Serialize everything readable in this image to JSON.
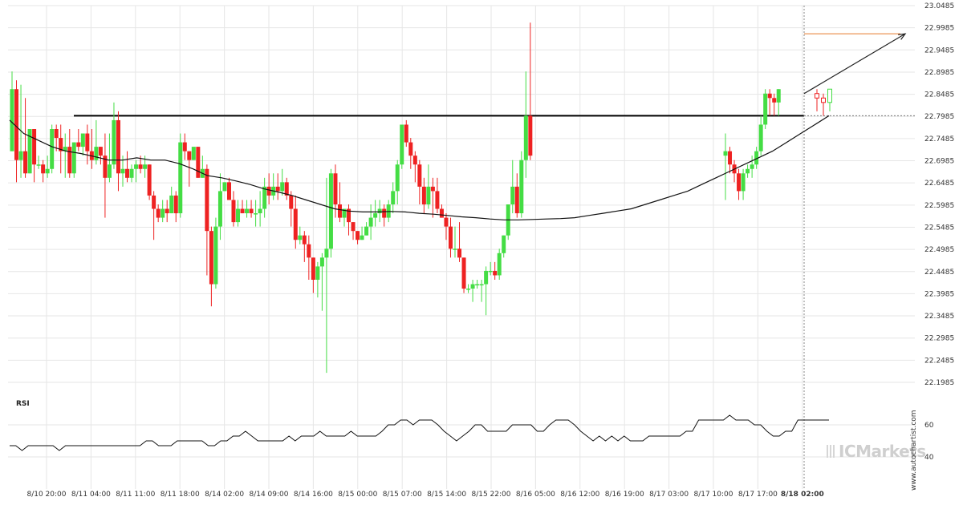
{
  "chart_data": {
    "type": "candlestick",
    "price_axis": {
      "ticks": [
        "23.0485",
        "22.9985",
        "22.9485",
        "22.8985",
        "22.8485",
        "22.7985",
        "22.7485",
        "22.6985",
        "22.6485",
        "22.5985",
        "22.5485",
        "22.4985",
        "22.4485",
        "22.3985",
        "22.3485",
        "22.2985",
        "22.2485",
        "22.1985"
      ],
      "range": [
        22.1985,
        23.0485
      ]
    },
    "time_axis": {
      "labels": [
        "8/10 20:00",
        "8/11 04:00",
        "8/11 11:00",
        "8/11 18:00",
        "8/14 02:00",
        "8/14 09:00",
        "8/14 16:00",
        "8/15 00:00",
        "8/15 07:00",
        "8/15 14:00",
        "8/15 22:00",
        "8/16 05:00",
        "8/16 12:00",
        "8/16 19:00",
        "8/17 03:00",
        "8/17 10:00",
        "8/17 17:00",
        "8/18 02:00"
      ],
      "highlight_label": "8/18 02:00"
    },
    "candle_count": 118,
    "candles_ohlc": [
      [
        22.72,
        22.9,
        22.86,
        22.72
      ],
      [
        22.86,
        22.88,
        22.7,
        22.65
      ],
      [
        22.7,
        22.87,
        22.72,
        22.66
      ],
      [
        22.72,
        22.84,
        22.67,
        22.66
      ],
      [
        22.67,
        22.75,
        22.77,
        22.67
      ],
      [
        22.77,
        22.77,
        22.69,
        22.65
      ],
      [
        22.69,
        22.71,
        22.69,
        22.68
      ],
      [
        22.69,
        22.7,
        22.67,
        22.65
      ],
      [
        22.67,
        22.71,
        22.68,
        22.66
      ],
      [
        22.68,
        22.78,
        22.77,
        22.67
      ],
      [
        22.77,
        22.78,
        22.75,
        22.72
      ],
      [
        22.75,
        22.78,
        22.72,
        22.67
      ],
      [
        22.72,
        22.76,
        22.73,
        22.66
      ],
      [
        22.73,
        22.77,
        22.67,
        22.66
      ],
      [
        22.67,
        22.74,
        22.74,
        22.66
      ],
      [
        22.74,
        22.77,
        22.73,
        22.72
      ],
      [
        22.73,
        22.76,
        22.76,
        22.71
      ],
      [
        22.76,
        22.78,
        22.72,
        22.69
      ],
      [
        22.72,
        22.77,
        22.7,
        22.68
      ],
      [
        22.7,
        22.79,
        22.73,
        22.69
      ],
      [
        22.73,
        22.73,
        22.71,
        22.69
      ],
      [
        22.71,
        22.76,
        22.66,
        22.57
      ],
      [
        22.66,
        22.76,
        22.69,
        22.65
      ],
      [
        22.69,
        22.83,
        22.79,
        22.68
      ],
      [
        22.79,
        22.81,
        22.67,
        22.63
      ],
      [
        22.67,
        22.71,
        22.68,
        22.64
      ],
      [
        22.68,
        22.72,
        22.66,
        22.65
      ],
      [
        22.66,
        22.69,
        22.68,
        22.65
      ],
      [
        22.68,
        22.7,
        22.69,
        22.65
      ],
      [
        22.69,
        22.71,
        22.68,
        22.67
      ],
      [
        22.68,
        22.71,
        22.69,
        22.66
      ],
      [
        22.69,
        22.69,
        22.62,
        22.61
      ],
      [
        22.62,
        22.63,
        22.59,
        22.52
      ],
      [
        22.59,
        22.6,
        22.57,
        22.56
      ],
      [
        22.57,
        22.61,
        22.59,
        22.56
      ],
      [
        22.59,
        22.61,
        22.58,
        22.56
      ],
      [
        22.58,
        22.64,
        22.62,
        22.58
      ],
      [
        22.62,
        22.63,
        22.58,
        22.56
      ],
      [
        22.58,
        22.76,
        22.74,
        22.57
      ],
      [
        22.74,
        22.76,
        22.72,
        22.7
      ],
      [
        22.72,
        22.72,
        22.7,
        22.64
      ],
      [
        22.7,
        22.71,
        22.73,
        22.7
      ],
      [
        22.73,
        22.73,
        22.66,
        22.66
      ],
      [
        22.66,
        22.71,
        22.68,
        22.66
      ],
      [
        22.68,
        22.69,
        22.54,
        22.44
      ],
      [
        22.54,
        22.55,
        22.42,
        22.37
      ],
      [
        22.42,
        22.57,
        22.55,
        22.41
      ],
      [
        22.55,
        22.67,
        22.63,
        22.52
      ],
      [
        22.63,
        22.65,
        22.65,
        22.63
      ],
      [
        22.65,
        22.66,
        22.61,
        22.61
      ],
      [
        22.61,
        22.63,
        22.56,
        22.55
      ],
      [
        22.56,
        22.61,
        22.59,
        22.55
      ],
      [
        22.59,
        22.61,
        22.58,
        22.58
      ],
      [
        22.58,
        22.61,
        22.59,
        22.57
      ],
      [
        22.59,
        22.61,
        22.58,
        22.57
      ],
      [
        22.58,
        22.61,
        22.58,
        22.55
      ],
      [
        22.58,
        22.63,
        22.59,
        22.55
      ],
      [
        22.59,
        22.66,
        22.64,
        22.57
      ],
      [
        22.64,
        22.67,
        22.62,
        22.6
      ],
      [
        22.62,
        22.67,
        22.64,
        22.61
      ],
      [
        22.64,
        22.67,
        22.63,
        22.61
      ],
      [
        22.63,
        22.68,
        22.65,
        22.62
      ],
      [
        22.65,
        22.66,
        22.62,
        22.61
      ],
      [
        22.62,
        22.63,
        22.59,
        22.55
      ],
      [
        22.59,
        22.62,
        22.52,
        22.5
      ],
      [
        22.52,
        22.55,
        22.53,
        22.51
      ],
      [
        22.53,
        22.54,
        22.51,
        22.47
      ],
      [
        22.51,
        22.53,
        22.48,
        22.43
      ],
      [
        22.48,
        22.48,
        22.43,
        22.4
      ],
      [
        22.43,
        22.47,
        22.46,
        22.39
      ],
      [
        22.46,
        22.49,
        22.48,
        22.36
      ],
      [
        22.48,
        22.66,
        22.5,
        22.22
      ],
      [
        22.5,
        22.68,
        22.67,
        22.48
      ],
      [
        22.67,
        22.69,
        22.6,
        22.57
      ],
      [
        22.6,
        22.65,
        22.57,
        22.56
      ],
      [
        22.57,
        22.59,
        22.59,
        22.55
      ],
      [
        22.59,
        22.6,
        22.56,
        22.53
      ],
      [
        22.56,
        22.56,
        22.54,
        22.52
      ],
      [
        22.54,
        22.54,
        22.52,
        22.51
      ],
      [
        22.52,
        22.55,
        22.53,
        22.52
      ],
      [
        22.53,
        22.56,
        22.55,
        22.53
      ],
      [
        22.55,
        22.6,
        22.57,
        22.52
      ],
      [
        22.57,
        22.61,
        22.58,
        22.55
      ],
      [
        22.58,
        22.61,
        22.59,
        22.56
      ],
      [
        22.59,
        22.6,
        22.57,
        22.55
      ],
      [
        22.57,
        22.61,
        22.6,
        22.56
      ],
      [
        22.6,
        22.65,
        22.63,
        22.58
      ],
      [
        22.63,
        22.7,
        22.69,
        22.6
      ],
      [
        22.69,
        22.76,
        22.78,
        22.68
      ],
      [
        22.78,
        22.79,
        22.74,
        22.73
      ],
      [
        22.74,
        22.75,
        22.71,
        22.68
      ],
      [
        22.71,
        22.72,
        22.69,
        22.65
      ],
      [
        22.69,
        22.7,
        22.64,
        22.6
      ],
      [
        22.64,
        22.66,
        22.6,
        22.58
      ],
      [
        22.6,
        22.69,
        22.64,
        22.59
      ],
      [
        22.64,
        22.66,
        22.63,
        22.57
      ],
      [
        22.63,
        22.66,
        22.59,
        22.58
      ],
      [
        22.59,
        22.6,
        22.57,
        22.57
      ],
      [
        22.57,
        22.58,
        22.55,
        22.52
      ],
      [
        22.55,
        22.57,
        22.5,
        22.48
      ],
      [
        22.5,
        22.55,
        22.5,
        22.48
      ],
      [
        22.5,
        22.56,
        22.48,
        22.47
      ],
      [
        22.48,
        22.48,
        22.41,
        22.4
      ],
      [
        22.41,
        22.42,
        22.41,
        22.4
      ],
      [
        22.41,
        22.43,
        22.42,
        22.38
      ],
      [
        22.42,
        22.43,
        22.42,
        22.41
      ],
      [
        22.42,
        22.43,
        22.42,
        22.38
      ],
      [
        22.42,
        22.46,
        22.45,
        22.35
      ],
      [
        22.45,
        22.47,
        22.45,
        22.44
      ],
      [
        22.45,
        22.47,
        22.44,
        22.43
      ],
      [
        22.44,
        22.5,
        22.49,
        22.43
      ],
      [
        22.49,
        22.53,
        22.53,
        22.48
      ],
      [
        22.53,
        22.6,
        22.6,
        22.52
      ],
      [
        22.6,
        22.7,
        22.64,
        22.58
      ],
      [
        22.64,
        22.67,
        22.58,
        22.57
      ],
      [
        22.58,
        22.72,
        22.7,
        22.57
      ],
      [
        22.7,
        22.9,
        22.8,
        22.66
      ],
      [
        22.8,
        23.01,
        22.71,
        22.7
      ]
    ],
    "candles_recent_ohlc": [
      [
        22.71,
        22.76,
        22.72,
        22.61
      ],
      [
        22.72,
        22.73,
        22.69,
        22.67
      ],
      [
        22.69,
        22.7,
        22.67,
        22.65
      ],
      [
        22.67,
        22.68,
        22.63,
        22.61
      ],
      [
        22.63,
        22.68,
        22.67,
        22.61
      ],
      [
        22.67,
        22.69,
        22.68,
        22.66
      ],
      [
        22.68,
        22.71,
        22.69,
        22.66
      ],
      [
        22.69,
        22.73,
        22.72,
        22.68
      ],
      [
        22.72,
        22.8,
        22.78,
        22.71
      ],
      [
        22.78,
        22.86,
        22.85,
        22.77
      ],
      [
        22.85,
        22.86,
        22.84,
        22.8
      ],
      [
        22.84,
        22.85,
        22.83,
        22.8
      ],
      [
        22.83,
        22.86,
        22.86,
        22.8
      ]
    ],
    "moving_average_series": [
      22.79,
      22.76,
      22.745,
      22.73,
      22.72,
      22.715,
      22.708,
      22.7,
      22.7,
      22.705,
      22.7,
      22.7,
      22.692,
      22.68,
      22.665,
      22.66,
      22.653,
      22.645,
      22.635,
      22.628,
      22.62,
      22.61,
      22.6,
      22.59,
      22.585,
      22.583,
      22.583,
      22.584,
      22.583,
      22.58,
      22.578,
      22.575,
      22.572,
      22.57,
      22.567,
      22.565,
      22.565,
      22.566,
      22.567,
      22.568,
      22.57,
      22.575,
      22.58,
      22.585,
      22.59,
      22.6,
      22.61,
      22.62,
      22.63,
      22.645,
      22.66,
      22.675,
      22.69,
      22.705,
      22.72,
      22.74,
      22.76,
      22.78,
      22.8
    ],
    "resistance_level": 22.8,
    "target_level": 22.985,
    "indicator_panel": {
      "title": "RSI",
      "ticks": [
        "60",
        "40"
      ],
      "range": [
        20,
        80
      ]
    },
    "rsi_values": [
      47,
      47,
      44,
      47,
      47,
      47,
      47,
      47,
      44,
      47,
      47,
      47,
      47,
      47,
      47,
      47,
      47,
      47,
      47,
      47,
      47,
      47,
      50,
      50,
      47,
      47,
      47,
      50,
      50,
      50,
      50,
      50,
      47,
      47,
      50,
      50,
      53,
      53,
      56,
      53,
      50,
      50,
      50,
      50,
      50,
      53,
      50,
      53,
      53,
      53,
      56,
      53,
      53,
      53,
      53,
      56,
      53,
      53,
      53,
      53,
      56,
      60,
      60,
      63,
      63,
      60,
      63,
      63,
      63,
      60,
      56,
      53,
      50,
      53,
      56,
      60,
      60,
      56,
      56,
      56,
      56,
      60,
      60,
      60,
      60,
      56,
      56,
      60,
      63,
      63,
      63,
      60,
      56,
      53,
      50,
      53,
      50,
      53,
      50,
      53,
      50,
      50,
      50,
      53,
      53,
      53,
      53,
      53,
      53,
      56,
      56,
      63,
      63,
      63,
      63,
      63,
      66,
      63,
      63,
      63,
      60,
      60,
      56,
      53,
      53,
      56,
      56,
      63,
      63,
      63,
      63,
      63,
      63
    ],
    "brand_text": "ICMarkets",
    "watermark_text": "www.autochartist.com",
    "colors": {
      "bull": "#44dd44",
      "bear": "#ee2222",
      "ma": "#111111",
      "resistance": "#000000",
      "target": "#e87a2a",
      "grid": "#e6e6e6"
    }
  }
}
